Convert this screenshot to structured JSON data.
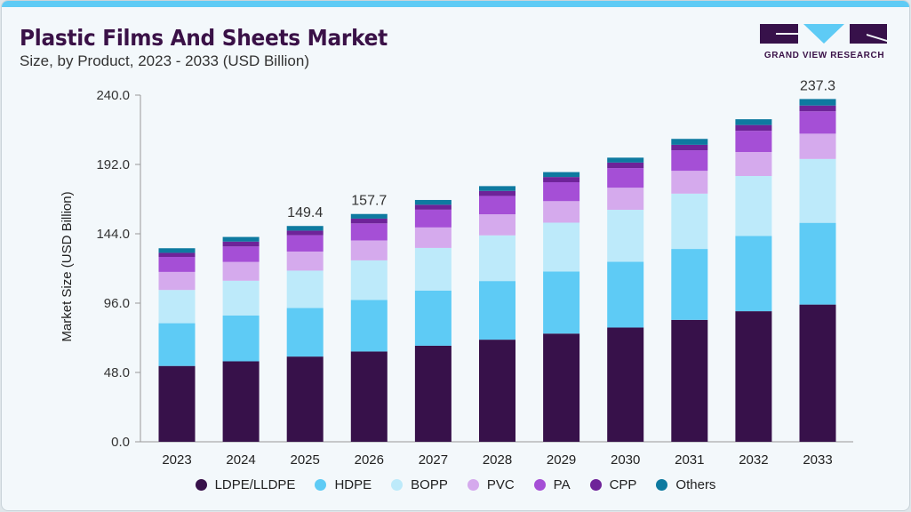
{
  "header": {
    "title": "Plastic Films And Sheets Market",
    "subtitle": "Size, by Product, 2023 - 2033 (USD Billion)"
  },
  "logo": {
    "text": "GRAND VIEW RESEARCH"
  },
  "chart_data": {
    "type": "bar",
    "stacked": true,
    "ylabel": "Market Size (USD Billion)",
    "xlabel": "",
    "ylim": [
      0,
      240
    ],
    "yticks": [
      "0.0",
      "48.0",
      "96.0",
      "144.0",
      "192.0",
      "240.0"
    ],
    "grid": false,
    "legend_position": "bottom",
    "categories": [
      "2023",
      "2024",
      "2025",
      "2026",
      "2027",
      "2028",
      "2029",
      "2030",
      "2031",
      "2032",
      "2033"
    ],
    "series": [
      {
        "name": "LDPE/LLDPE",
        "color": "#37114a",
        "values": [
          52.5,
          55.7,
          59.0,
          62.5,
          66.5,
          70.7,
          74.9,
          79.1,
          84.4,
          90.4,
          95.0
        ]
      },
      {
        "name": "HDPE",
        "color": "#5ecbf5",
        "values": [
          29.6,
          31.7,
          33.6,
          35.7,
          38.2,
          40.6,
          43.0,
          45.5,
          49.1,
          52.1,
          56.6
        ]
      },
      {
        "name": "BOPP",
        "color": "#bdeafa",
        "values": [
          23.0,
          24.1,
          25.9,
          27.4,
          29.5,
          31.6,
          33.8,
          36.0,
          38.3,
          41.5,
          44.2
        ]
      },
      {
        "name": "PVC",
        "color": "#d5aaed",
        "values": [
          12.5,
          13.0,
          13.2,
          13.8,
          14.2,
          14.6,
          14.9,
          15.3,
          15.8,
          16.6,
          17.5
        ]
      },
      {
        "name": "PA",
        "color": "#a54fd6",
        "values": [
          10.4,
          10.7,
          11.3,
          11.8,
          12.3,
          12.7,
          13.1,
          13.6,
          14.2,
          14.7,
          15.5
        ]
      },
      {
        "name": "CPP",
        "color": "#6e2399",
        "values": [
          2.8,
          3.4,
          3.2,
          3.3,
          3.4,
          3.5,
          3.6,
          3.8,
          3.8,
          4.0,
          4.0
        ]
      },
      {
        "name": "Others",
        "color": "#0e7aa0",
        "values": [
          3.2,
          3.2,
          3.2,
          3.2,
          3.3,
          3.3,
          3.4,
          3.4,
          4.1,
          4.0,
          4.5
        ]
      }
    ],
    "data_labels": [
      {
        "category": "2025",
        "text": "149.4"
      },
      {
        "category": "2026",
        "text": "157.7"
      },
      {
        "category": "2033",
        "text": "237.3"
      }
    ]
  }
}
